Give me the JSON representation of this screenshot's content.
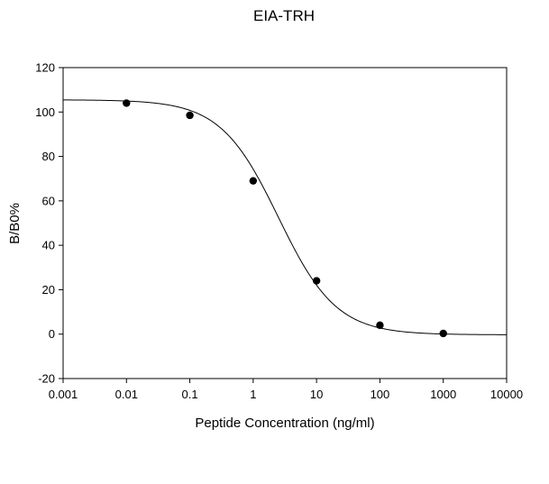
{
  "chart_data": {
    "type": "scatter",
    "title": "EIA-TRH",
    "xlabel": "Peptide Concentration (ng/ml)",
    "ylabel": "B/B0%",
    "xscale": "log",
    "xlim": [
      0.001,
      10000
    ],
    "ylim": [
      -20,
      120
    ],
    "x_ticks": [
      "0.001",
      "0.01",
      "0.1",
      "1",
      "10",
      "100",
      "1000",
      "10000"
    ],
    "y_ticks": [
      "-20",
      "0",
      "20",
      "40",
      "60",
      "80",
      "100",
      "120"
    ],
    "grid": false,
    "legend": "none",
    "series": [
      {
        "points": [
          {
            "x": 0.01,
            "y": 104
          },
          {
            "x": 0.1,
            "y": 98.5
          },
          {
            "x": 1,
            "y": 69
          },
          {
            "x": 10,
            "y": 24
          },
          {
            "x": 100,
            "y": 4
          },
          {
            "x": 1000,
            "y": 0.3
          }
        ],
        "fit": {
          "model": "four-parameter logistic",
          "top": 105.5,
          "bottom": -0.3,
          "ec50": 2.5,
          "hill": 0.95
        }
      }
    ]
  }
}
